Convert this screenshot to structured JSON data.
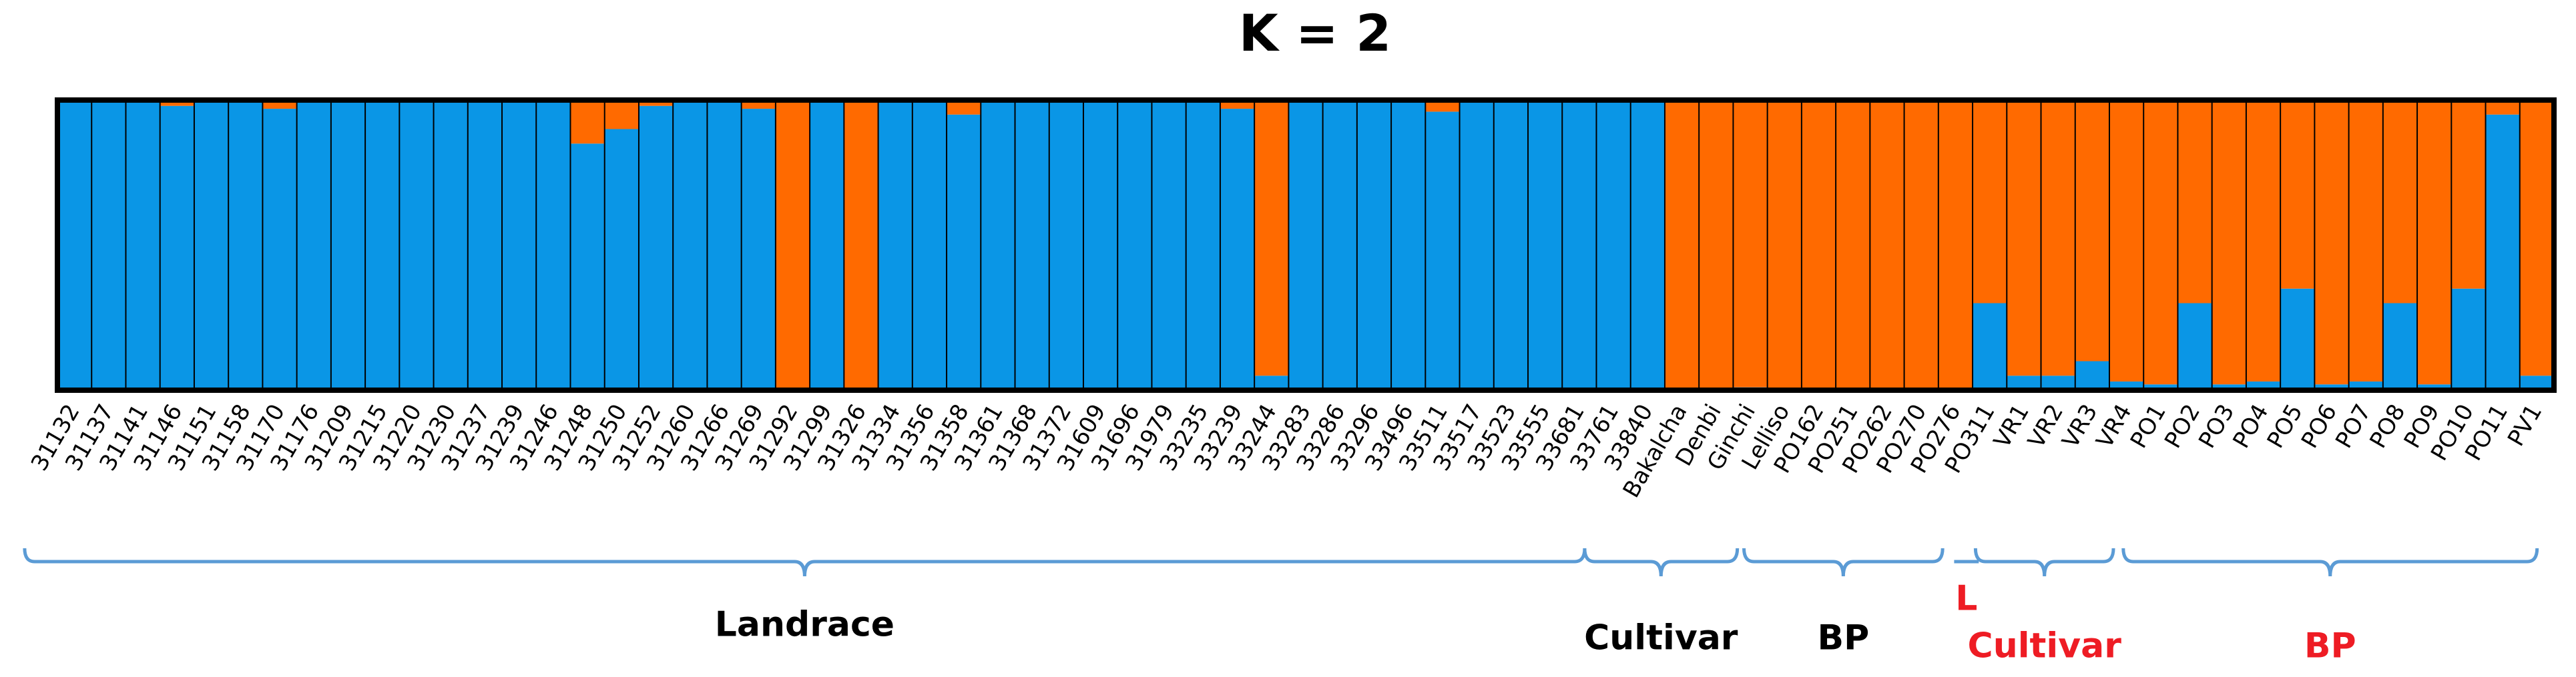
{
  "chart_data": {
    "type": "structure",
    "title": "K = 2",
    "categories": [
      "31132",
      "31137",
      "31141",
      "31146",
      "31151",
      "31158",
      "31170",
      "31176",
      "31209",
      "31215",
      "31220",
      "31230",
      "31237",
      "31239",
      "31246",
      "31248",
      "31250",
      "31252",
      "31260",
      "31266",
      "31269",
      "31292",
      "31299",
      "31326",
      "31334",
      "31356",
      "31358",
      "31361",
      "31368",
      "31372",
      "31609",
      "31696",
      "31979",
      "33235",
      "33239",
      "33244",
      "33283",
      "33286",
      "33296",
      "33496",
      "33511",
      "33517",
      "33523",
      "33555",
      "33681",
      "33761",
      "33840",
      "Bakalcha",
      "Denbi",
      "Ginchi",
      "Lelliso",
      "PO162",
      "PO251",
      "PO262",
      "PO270",
      "PO276",
      "PO311",
      "VR1",
      "VR2",
      "VR3",
      "VR4",
      "PO1",
      "PO2",
      "PO3",
      "PO4",
      "PO5",
      "PO6",
      "PO7",
      "PO8",
      "PO9",
      "PO10",
      "PO11",
      "PV1"
    ],
    "series": [
      {
        "color": "#0a96e6",
        "values": [
          1,
          1,
          1,
          0.98,
          1,
          1,
          0.97,
          1,
          1,
          1,
          1,
          1,
          1,
          1,
          1,
          0.85,
          0.9,
          0.98,
          1,
          1,
          0.97,
          0,
          1,
          0,
          1,
          1,
          0.95,
          1,
          1,
          1,
          1,
          1,
          1,
          1,
          0.97,
          0.05,
          1,
          1,
          1,
          1,
          0.96,
          1,
          1,
          1,
          1,
          1,
          1,
          0,
          0,
          0.01,
          0,
          0,
          0,
          0,
          0,
          0,
          0.3,
          0.05,
          0.05,
          0.1,
          0.03,
          0.02,
          0.3,
          0.02,
          0.03,
          0.35,
          0.02,
          0.03,
          0.3,
          0.02,
          0.35,
          0.95,
          0.05
        ]
      },
      {
        "color": "#ff6a00",
        "values": [
          0,
          0,
          0,
          0.02,
          0,
          0,
          0.03,
          0,
          0,
          0,
          0,
          0,
          0,
          0,
          0,
          0.15,
          0.1,
          0.02,
          0,
          0,
          0.03,
          1,
          0,
          1,
          0,
          0,
          0.05,
          0,
          0,
          0,
          0,
          0,
          0,
          0,
          0.03,
          0.95,
          0,
          0,
          0,
          0,
          0.04,
          0,
          0,
          0,
          0,
          0,
          0,
          1,
          1,
          0.99,
          1,
          1,
          1,
          1,
          1,
          1,
          0.7,
          0.95,
          0.95,
          0.9,
          0.97,
          0.98,
          0.7,
          0.98,
          0.97,
          0.65,
          0.98,
          0.97,
          0.7,
          0.98,
          0.65,
          0.05,
          0.95
        ]
      }
    ],
    "ylim": [
      0,
      1
    ],
    "groups": [
      {
        "label": "Landrace",
        "color": "#000000"
      },
      {
        "label": "Cultivar",
        "color": "#000000"
      },
      {
        "label": "BP",
        "color": "#000000"
      },
      {
        "label": "L",
        "color": "#ee1c24"
      },
      {
        "label": "Cultivar",
        "color": "#ee1c24"
      },
      {
        "label": "BP",
        "color": "#ee1c24"
      }
    ]
  }
}
